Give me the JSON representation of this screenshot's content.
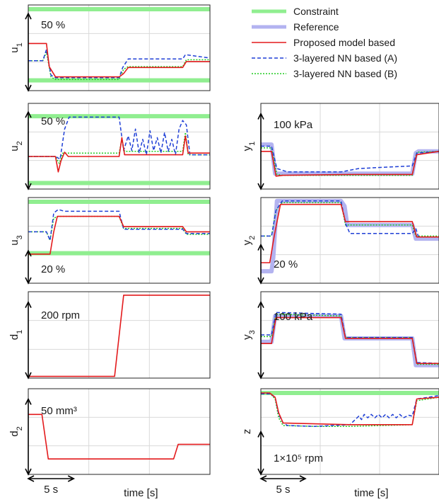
{
  "legend": [
    {
      "label": "Constraint",
      "color": "#90ee90",
      "style": "solid-thick"
    },
    {
      "label": "Reference",
      "color": "#b3b3f0",
      "style": "solid-thick"
    },
    {
      "label": "Proposed model based",
      "color": "#e31a1c",
      "style": "solid"
    },
    {
      "label": "3-layered NN based (A)",
      "color": "#1f3fd6",
      "style": "dashed"
    },
    {
      "label": "3-layered NN based (B)",
      "color": "#22cc22",
      "style": "dotted"
    }
  ],
  "xlabel_left": "time [s]",
  "xlabel_right": "time [s]",
  "time_scale": {
    "label": "5 s",
    "duration_s": 5,
    "total_s": 20
  },
  "panels": [
    {
      "id": "u1",
      "ylabel": "u",
      "sub": "1",
      "scale_note": "50 %",
      "scale_dir": "down",
      "ylim": [
        0,
        100
      ],
      "constraints": [
        95,
        12
      ],
      "series": {
        "proposed": [
          [
            0,
            55
          ],
          [
            2,
            55
          ],
          [
            2.3,
            28
          ],
          [
            3,
            16
          ],
          [
            10,
            16
          ],
          [
            10.5,
            20
          ],
          [
            11,
            27
          ],
          [
            17,
            27
          ],
          [
            17.4,
            34
          ],
          [
            20,
            34
          ]
        ],
        "nnA": [
          [
            0,
            35
          ],
          [
            1.6,
            35
          ],
          [
            2,
            48
          ],
          [
            2.5,
            18
          ],
          [
            3,
            15
          ],
          [
            10,
            15
          ],
          [
            10.4,
            27
          ],
          [
            11,
            37
          ],
          [
            17,
            37
          ],
          [
            17.3,
            42
          ],
          [
            20,
            38
          ]
        ],
        "nnB": [
          [
            0,
            35
          ],
          [
            1.6,
            35
          ],
          [
            2,
            45
          ],
          [
            2.5,
            16
          ],
          [
            3,
            13
          ],
          [
            10,
            13
          ],
          [
            10.5,
            25
          ],
          [
            11,
            28
          ],
          [
            17,
            28
          ],
          [
            17.4,
            36
          ],
          [
            20,
            36
          ]
        ]
      }
    },
    {
      "id": "u2",
      "ylabel": "u",
      "sub": "2",
      "scale_note": "50 %",
      "scale_dir": "down",
      "ylim": [
        0,
        100
      ],
      "constraints": [
        85,
        7
      ],
      "series": {
        "proposed": [
          [
            0,
            38
          ],
          [
            3,
            38
          ],
          [
            3.3,
            20
          ],
          [
            3.6,
            33
          ],
          [
            4,
            43
          ],
          [
            4.4,
            38
          ],
          [
            10,
            38
          ],
          [
            10.3,
            60
          ],
          [
            10.6,
            40
          ],
          [
            11,
            40
          ],
          [
            17,
            40
          ],
          [
            17.3,
            62
          ],
          [
            17.6,
            42
          ],
          [
            20,
            42
          ]
        ],
        "nnA": [
          [
            0,
            38
          ],
          [
            3,
            38
          ],
          [
            3.5,
            35
          ],
          [
            4,
            70
          ],
          [
            4.5,
            84
          ],
          [
            10,
            84
          ],
          [
            10.5,
            45
          ],
          [
            11,
            62
          ],
          [
            11.4,
            45
          ],
          [
            11.8,
            70
          ],
          [
            12.2,
            42
          ],
          [
            12.6,
            58
          ],
          [
            13,
            40
          ],
          [
            13.4,
            68
          ],
          [
            13.8,
            45
          ],
          [
            14.2,
            60
          ],
          [
            14.6,
            42
          ],
          [
            15,
            66
          ],
          [
            15.4,
            44
          ],
          [
            15.8,
            58
          ],
          [
            16.2,
            40
          ],
          [
            16.6,
            70
          ],
          [
            17,
            80
          ],
          [
            17.4,
            75
          ],
          [
            17.8,
            40
          ],
          [
            20,
            40
          ]
        ],
        "nnB": [
          [
            0,
            38
          ],
          [
            3,
            38
          ],
          [
            3.4,
            30
          ],
          [
            3.8,
            42
          ],
          [
            10,
            42
          ],
          [
            10.3,
            58
          ],
          [
            10.6,
            44
          ],
          [
            17,
            44
          ],
          [
            17.3,
            66
          ],
          [
            17.6,
            40
          ],
          [
            20,
            40
          ]
        ]
      }
    },
    {
      "id": "u3",
      "ylabel": "u",
      "sub": "3",
      "scale_note": "20 %",
      "scale_dir": "up",
      "ylim": [
        0,
        100
      ],
      "constraints": [
        95,
        35
      ],
      "series": {
        "proposed": [
          [
            0,
            34
          ],
          [
            2.4,
            34
          ],
          [
            2.8,
            60
          ],
          [
            3.2,
            78
          ],
          [
            10,
            78
          ],
          [
            10.5,
            66
          ],
          [
            17,
            66
          ],
          [
            17.4,
            60
          ],
          [
            20,
            60
          ]
        ],
        "nnA": [
          [
            0,
            60
          ],
          [
            2,
            60
          ],
          [
            2.4,
            50
          ],
          [
            2.8,
            82
          ],
          [
            3.3,
            86
          ],
          [
            4,
            84
          ],
          [
            10,
            84
          ],
          [
            10.5,
            63
          ],
          [
            17,
            63
          ],
          [
            17.4,
            58
          ],
          [
            20,
            58
          ]
        ],
        "nnB": [
          [
            0,
            60
          ],
          [
            2,
            60
          ],
          [
            2.4,
            50
          ],
          [
            2.8,
            76
          ],
          [
            3.3,
            78
          ],
          [
            10,
            78
          ],
          [
            10.5,
            64
          ],
          [
            17,
            64
          ],
          [
            17.4,
            57
          ],
          [
            20,
            57
          ]
        ]
      }
    },
    {
      "id": "d1",
      "ylabel": "d",
      "sub": "1",
      "scale_note": "200 rpm",
      "scale_dir": "down",
      "ylim": [
        0,
        100
      ],
      "constraints": [],
      "series": {
        "proposed": [
          [
            0,
            2
          ],
          [
            9.5,
            2
          ],
          [
            10.5,
            96
          ],
          [
            20,
            96
          ]
        ]
      }
    },
    {
      "id": "d2",
      "ylabel": "d",
      "sub": "2",
      "scale_note": "50 mm³",
      "scale_dir": "down",
      "ylim": [
        0,
        100
      ],
      "constraints": [],
      "series": {
        "proposed": [
          [
            0,
            70
          ],
          [
            1.5,
            70
          ],
          [
            2.2,
            18
          ],
          [
            9,
            18
          ],
          [
            16,
            18
          ],
          [
            16.5,
            35
          ],
          [
            20,
            35
          ]
        ]
      }
    },
    {
      "id": "y1",
      "ylabel": "y",
      "sub": "1",
      "scale_note": "100 kPa",
      "scale_dir": "down",
      "ylim": [
        0,
        100
      ],
      "constraints": [],
      "series": {
        "reference": [
          [
            0,
            52
          ],
          [
            1.2,
            52
          ],
          [
            1.6,
            18
          ],
          [
            10,
            18
          ],
          [
            17,
            18
          ],
          [
            17.4,
            42
          ],
          [
            17.7,
            44
          ],
          [
            20,
            44
          ]
        ],
        "proposed": [
          [
            0,
            44
          ],
          [
            1.2,
            44
          ],
          [
            1.7,
            15
          ],
          [
            2.5,
            16
          ],
          [
            10,
            17
          ],
          [
            17,
            17
          ],
          [
            17.5,
            40
          ],
          [
            20,
            44
          ]
        ],
        "nnA": [
          [
            0,
            50
          ],
          [
            1.2,
            50
          ],
          [
            1.8,
            24
          ],
          [
            3,
            20
          ],
          [
            9,
            20
          ],
          [
            10,
            22
          ],
          [
            11,
            24
          ],
          [
            17,
            27
          ],
          [
            17.5,
            42
          ],
          [
            20,
            44
          ]
        ],
        "nnB": [
          [
            0,
            48
          ],
          [
            1.2,
            48
          ],
          [
            1.8,
            17
          ],
          [
            2.5,
            16
          ],
          [
            10,
            16
          ],
          [
            17,
            16
          ],
          [
            17.5,
            43
          ],
          [
            20,
            44
          ]
        ]
      }
    },
    {
      "id": "y2",
      "ylabel": "y",
      "sub": "2",
      "scale_note": "20 %",
      "scale_dir": "up",
      "ylim": [
        0,
        100
      ],
      "constraints": [],
      "series": {
        "reference": [
          [
            0,
            14
          ],
          [
            1.2,
            14
          ],
          [
            1.4,
            30
          ],
          [
            1.8,
            96
          ],
          [
            9,
            96
          ],
          [
            9.4,
            90
          ],
          [
            9.7,
            68
          ],
          [
            17,
            68
          ],
          [
            17.4,
            52
          ],
          [
            20,
            52
          ]
        ],
        "proposed": [
          [
            0,
            24
          ],
          [
            1,
            24
          ],
          [
            1.5,
            55
          ],
          [
            2.2,
            92
          ],
          [
            9,
            92
          ],
          [
            9.5,
            72
          ],
          [
            17,
            72
          ],
          [
            17.5,
            54
          ],
          [
            20,
            54
          ]
        ],
        "nnA": [
          [
            0,
            55
          ],
          [
            1.2,
            55
          ],
          [
            1.7,
            85
          ],
          [
            2.4,
            96
          ],
          [
            9,
            96
          ],
          [
            9.5,
            70
          ],
          [
            10,
            58
          ],
          [
            17,
            58
          ],
          [
            17.4,
            64
          ],
          [
            17.7,
            54
          ],
          [
            20,
            54
          ]
        ],
        "nnB": [
          [
            0,
            55
          ],
          [
            1.2,
            55
          ],
          [
            1.7,
            85
          ],
          [
            2.4,
            94
          ],
          [
            9,
            94
          ],
          [
            9.5,
            68
          ],
          [
            17,
            68
          ],
          [
            17.4,
            55
          ],
          [
            20,
            55
          ]
        ]
      }
    },
    {
      "id": "y3",
      "ylabel": "y",
      "sub": "3",
      "scale_note": "100 kPa",
      "scale_dir": "down",
      "ylim": [
        0,
        100
      ],
      "constraints": [],
      "series": {
        "reference": [
          [
            0,
            42
          ],
          [
            1.2,
            42
          ],
          [
            1.6,
            72
          ],
          [
            9,
            72
          ],
          [
            9.4,
            46
          ],
          [
            17,
            46
          ],
          [
            17.4,
            15
          ],
          [
            20,
            15
          ]
        ],
        "proposed": [
          [
            0,
            40
          ],
          [
            1.2,
            40
          ],
          [
            1.7,
            70
          ],
          [
            9,
            70
          ],
          [
            9.5,
            46
          ],
          [
            17,
            46
          ],
          [
            17.5,
            17
          ],
          [
            20,
            17
          ]
        ],
        "nnA": [
          [
            0,
            50
          ],
          [
            1.2,
            50
          ],
          [
            1.7,
            76
          ],
          [
            9,
            74
          ],
          [
            9.5,
            47
          ],
          [
            17,
            47
          ],
          [
            17.5,
            18
          ],
          [
            20,
            17
          ]
        ],
        "nnB": [
          [
            0,
            48
          ],
          [
            1.2,
            48
          ],
          [
            1.7,
            74
          ],
          [
            9,
            72
          ],
          [
            9.5,
            47
          ],
          [
            17,
            47
          ],
          [
            17.5,
            16
          ],
          [
            20,
            16
          ]
        ]
      }
    },
    {
      "id": "z",
      "ylabel": "z",
      "sub": "",
      "scale_note": "1×10⁵ rpm",
      "scale_dir": "up",
      "ylim": [
        0,
        100
      ],
      "constraints": [
        95
      ],
      "series": {
        "proposed": [
          [
            0,
            95
          ],
          [
            1,
            95
          ],
          [
            1.6,
            90
          ],
          [
            2,
            72
          ],
          [
            2.5,
            60
          ],
          [
            10,
            58
          ],
          [
            17,
            58
          ],
          [
            17.5,
            88
          ],
          [
            20,
            90
          ]
        ],
        "nnA": [
          [
            0,
            94
          ],
          [
            1,
            94
          ],
          [
            1.6,
            90
          ],
          [
            2,
            70
          ],
          [
            2.5,
            60
          ],
          [
            3,
            57
          ],
          [
            6,
            56
          ],
          [
            10,
            58
          ],
          [
            11,
            68
          ],
          [
            11.3,
            64
          ],
          [
            11.6,
            70
          ],
          [
            12,
            66
          ],
          [
            12.4,
            70
          ],
          [
            12.8,
            66
          ],
          [
            13.2,
            70
          ],
          [
            13.6,
            66
          ],
          [
            14,
            70
          ],
          [
            14.4,
            66
          ],
          [
            14.8,
            70
          ],
          [
            15.2,
            66
          ],
          [
            15.6,
            70
          ],
          [
            16,
            66
          ],
          [
            16.6,
            69
          ],
          [
            17,
            68
          ],
          [
            17.5,
            88
          ],
          [
            20,
            92
          ]
        ],
        "nnB": [
          [
            0,
            95
          ],
          [
            1,
            95
          ],
          [
            1.6,
            88
          ],
          [
            2,
            66
          ],
          [
            2.5,
            57
          ],
          [
            6,
            56
          ],
          [
            10,
            56
          ],
          [
            17,
            58
          ],
          [
            17.5,
            86
          ],
          [
            20,
            90
          ]
        ]
      }
    }
  ]
}
